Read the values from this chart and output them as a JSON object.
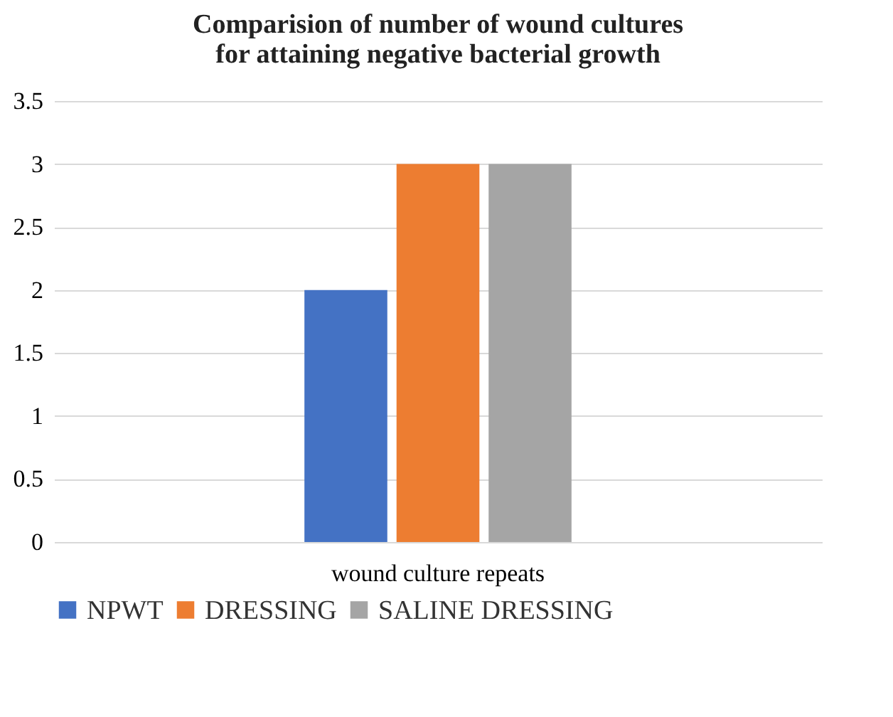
{
  "chart_data": {
    "type": "bar",
    "title": "Comparision of number of wound cultures for attaining negative bacterial growth",
    "categories": [
      "wound culture repeats"
    ],
    "series": [
      {
        "name": "NPWT",
        "color": "#4472c4",
        "values": [
          2
        ]
      },
      {
        "name": "DRESSING",
        "color": "#ed7d31",
        "values": [
          3
        ]
      },
      {
        "name": "SALINE DRESSING",
        "color": "#a5a5a5",
        "values": [
          3
        ]
      }
    ],
    "ylim": [
      0,
      3.5
    ],
    "yticks": [
      0,
      0.5,
      1,
      1.5,
      2,
      2.5,
      3,
      3.5
    ],
    "grid": "y",
    "legend": "bottom"
  }
}
